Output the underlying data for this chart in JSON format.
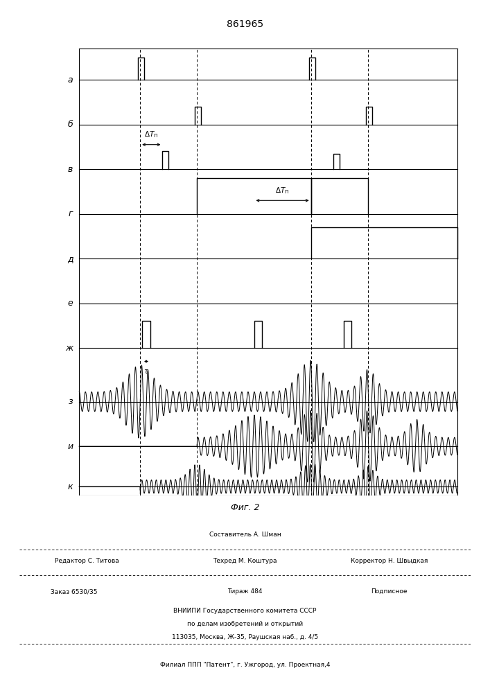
{
  "title": "861965",
  "fig_label": "Фиг. 2",
  "background_color": "#ffffff",
  "line_color": "#000000",
  "channel_labels": [
    "а",
    "б",
    "в",
    "г",
    "д",
    "е",
    "ж",
    "з",
    "и",
    "к"
  ],
  "footer_editor": "Редактор С. Титова",
  "footer_composer": "Составитель А. Шман",
  "footer_techred": "Техред М. Коштура",
  "footer_corrector": "Корректор Н. Швыдкая",
  "footer_order": "Заказ 6530/35",
  "footer_tiraz": "Тираж 484",
  "footer_podp": "Подписное",
  "footer_vniip": "ВНИИПИ Государственного комитета СССР",
  "footer_po_delam": "по делам изобретений и открытий",
  "footer_address": "113035, Москва, Ж-35, Раушская наб., д. 4/5",
  "footer_filial": "Филиал ППП \"Патент\", г. Ужгород, ул. Проектная,4"
}
